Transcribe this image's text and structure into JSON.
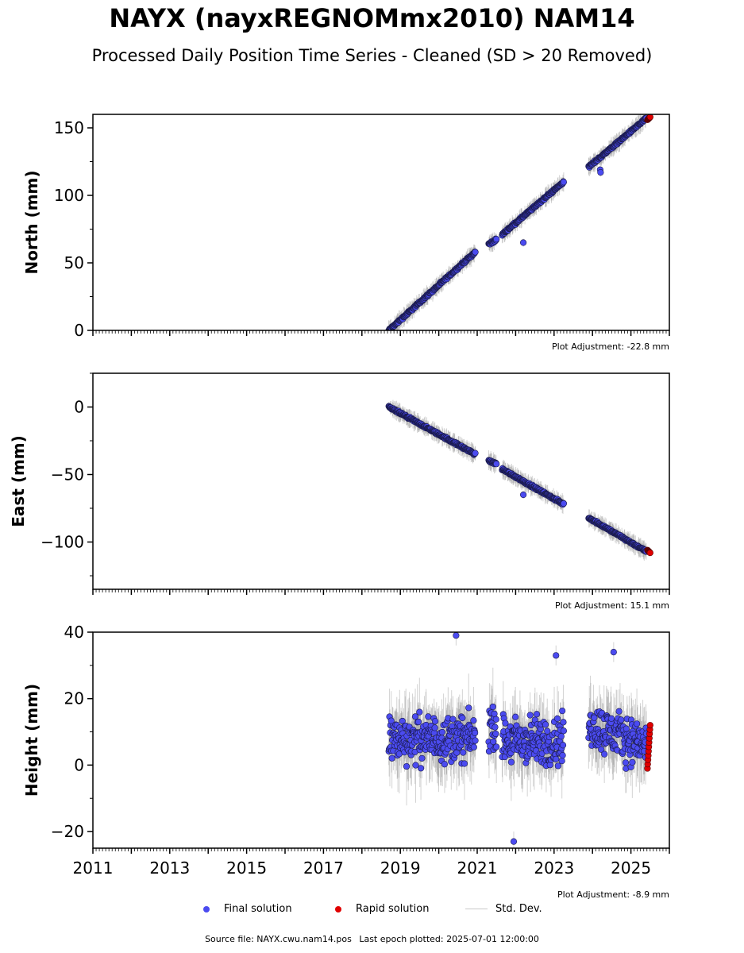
{
  "header": {
    "title": "NAYX (nayxREGNOMmx2010) NAM14",
    "subtitle": "Processed Daily Position Time Series - Cleaned (SD > 20 Removed)"
  },
  "footer": {
    "source": "Source file: NAYX.cwu.nam14.pos",
    "last_epoch": "Last epoch plotted: 2025-07-01 12:00:00"
  },
  "legend": {
    "final": "Final solution",
    "rapid": "Rapid solution",
    "std": "Std. Dev."
  },
  "colors": {
    "final": "#4b4bf0",
    "rapid": "#e00000",
    "std": "#808080",
    "edge": "#1a1a4a"
  },
  "chart_data": [
    {
      "type": "scatter",
      "ylabel": "North (mm)",
      "adjustment": "Plot Adjustment: -22.8 mm",
      "xlim": [
        2011,
        2026
      ],
      "ylim": [
        0,
        160
      ],
      "yticks": [
        0,
        50,
        100,
        150
      ],
      "ytick_labels": [
        "0",
        "50",
        "100",
        "150"
      ],
      "xtick_labels_shown": false,
      "segments": [
        {
          "t0": 2018.7,
          "t1": 2020.95,
          "y0": 0,
          "y1": 58
        },
        {
          "t0": 2021.3,
          "t1": 2021.5,
          "y0": 64,
          "y1": 67
        },
        {
          "t0": 2021.65,
          "t1": 2023.25,
          "y0": 71,
          "y1": 110
        },
        {
          "t0": 2023.9,
          "t1": 2025.4,
          "y0": 121,
          "y1": 157
        }
      ],
      "outliers": [
        {
          "t": 2022.2,
          "y": 65
        },
        {
          "t": 2024.2,
          "y": 119
        },
        {
          "t": 2024.21,
          "y": 117
        }
      ],
      "rapid": {
        "t0": 2025.43,
        "t1": 2025.5,
        "y0": 156,
        "y1": 158
      }
    },
    {
      "type": "scatter",
      "ylabel": "East (mm)",
      "adjustment": "Plot Adjustment: 15.1 mm",
      "xlim": [
        2011,
        2026
      ],
      "ylim": [
        -135,
        25
      ],
      "yticks": [
        -100,
        -50,
        0
      ],
      "ytick_labels": [
        "−100",
        "−50",
        "0"
      ],
      "xtick_labels_shown": false,
      "segments": [
        {
          "t0": 2018.7,
          "t1": 2020.95,
          "y0": 0,
          "y1": -35
        },
        {
          "t0": 2021.3,
          "t1": 2021.5,
          "y0": -40,
          "y1": -42
        },
        {
          "t0": 2021.65,
          "t1": 2023.25,
          "y0": -46,
          "y1": -72
        },
        {
          "t0": 2023.9,
          "t1": 2025.4,
          "y0": -82,
          "y1": -107
        }
      ],
      "outliers": [
        {
          "t": 2022.2,
          "y": -65
        }
      ],
      "rapid": {
        "t0": 2025.43,
        "t1": 2025.5,
        "y0": -106,
        "y1": -108
      }
    },
    {
      "type": "scatter",
      "ylabel": "Height (mm)",
      "adjustment": "Plot Adjustment: -8.9 mm",
      "xlim": [
        2011,
        2026
      ],
      "ylim": [
        -25,
        40
      ],
      "yticks": [
        -20,
        0,
        20,
        40
      ],
      "ytick_labels": [
        "−20",
        "0",
        "20",
        "40"
      ],
      "xtick_labels_shown": true,
      "xticks": [
        2011,
        2013,
        2015,
        2017,
        2019,
        2021,
        2023,
        2025
      ],
      "xtick_labels": [
        "2011",
        "2013",
        "2015",
        "2017",
        "2019",
        "2021",
        "2023",
        "2025"
      ],
      "segments": [
        {
          "t0": 2018.7,
          "t1": 2020.95,
          "y0": 8,
          "y1": 8,
          "spread": 10
        },
        {
          "t0": 2021.3,
          "t1": 2021.5,
          "y0": 12,
          "y1": 12,
          "spread": 10
        },
        {
          "t0": 2021.65,
          "t1": 2023.25,
          "y0": 7,
          "y1": 7,
          "spread": 11
        },
        {
          "t0": 2023.9,
          "t1": 2025.4,
          "y0": 12,
          "y1": 6,
          "spread": 10
        }
      ],
      "outliers": [
        {
          "t": 2020.45,
          "y": 39
        },
        {
          "t": 2021.95,
          "y": -23
        },
        {
          "t": 2023.05,
          "y": 33
        },
        {
          "t": 2024.55,
          "y": 34
        }
      ],
      "rapid": {
        "t0": 2025.43,
        "t1": 2025.5,
        "y0": -1,
        "y1": 12
      }
    }
  ]
}
